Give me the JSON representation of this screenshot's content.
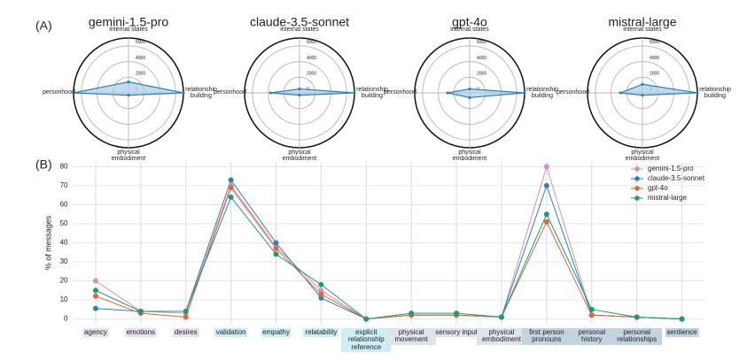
{
  "panel_labels": [
    "(A)",
    "(B)"
  ],
  "chart_data": [
    {
      "type": "radar",
      "title": "gemini-1.5-pro",
      "categories": [
        "internal states",
        "relationship building",
        "physical embodiment",
        "personhood"
      ],
      "values": [
        1400,
        7000,
        300,
        7000
      ],
      "color": "#2e7fb8",
      "fill": "#a9cde5",
      "rlim": [
        0,
        7000
      ],
      "rticks": [
        0,
        2000,
        4000,
        6000
      ]
    },
    {
      "type": "radar",
      "title": "claude-3.5-sonnet",
      "categories": [
        "internal states",
        "relationship building",
        "physical embodiment",
        "personhood"
      ],
      "values": [
        500,
        7000,
        300,
        3700
      ],
      "color": "#2e7fb8",
      "fill": "#a9cde5",
      "rlim": [
        0,
        7000
      ],
      "rticks": [
        0,
        2000,
        4000,
        6000
      ]
    },
    {
      "type": "radar",
      "title": "gpt-4o",
      "categories": [
        "internal states",
        "relationship building",
        "physical embodiment",
        "personhood"
      ],
      "values": [
        500,
        7000,
        600,
        2800
      ],
      "color": "#2e7fb8",
      "fill": "#a9cde5",
      "rlim": [
        0,
        7000
      ],
      "rticks": [
        0,
        2000,
        4000,
        6000
      ]
    },
    {
      "type": "radar",
      "title": "mistral-large",
      "categories": [
        "internal states",
        "relationship building",
        "physical embodiment",
        "personhood"
      ],
      "values": [
        1100,
        7000,
        300,
        2800
      ],
      "color": "#2e7fb8",
      "fill": "#a9cde5",
      "rlim": [
        0,
        7000
      ],
      "rticks": [
        0,
        2000,
        4000,
        6000
      ]
    },
    {
      "type": "line",
      "y_label": "% of messages",
      "categories": [
        "agency",
        "emotions",
        "desires",
        "validation",
        "empathy",
        "relatability",
        "explicit relationship reference",
        "physical movement",
        "sensory input",
        "physical embodiment",
        "first person pronouns",
        "personal history",
        "personal relationships",
        "sentience"
      ],
      "category_colors": [
        "#e9e1f0",
        "#e9e1f0",
        "#e9e1f0",
        "#cdeef6",
        "#cdeef6",
        "#cdeef6",
        "#cdeef6",
        "#dfe4ec",
        "#dfe4ec",
        "#dfe4ec",
        "#c3d4e1",
        "#c3d4e1",
        "#c3d4e1",
        "#c3d4e1"
      ],
      "series": [
        {
          "name": "gemini-1.5-pro",
          "color": "#d98fb5",
          "values": [
            20,
            4,
            3,
            70,
            38,
            15,
            0,
            2,
            2,
            1,
            80,
            2,
            1,
            0
          ]
        },
        {
          "name": "claude-3.5-sonnet",
          "color": "#2e7fb8",
          "values": [
            5.5,
            4,
            4,
            73,
            40,
            11,
            0,
            2,
            2,
            1,
            70,
            2,
            1,
            0
          ]
        },
        {
          "name": "gpt-4o",
          "color": "#d9683a",
          "values": [
            12,
            3,
            1,
            69,
            37,
            13,
            0,
            2,
            2,
            1,
            51,
            2,
            1,
            0
          ]
        },
        {
          "name": "mistral-large",
          "color": "#1a9c7a",
          "values": [
            15,
            4,
            4,
            64,
            34,
            18,
            0,
            3,
            3,
            1,
            55,
            5,
            1,
            0
          ]
        }
      ],
      "ylim": [
        -2.5,
        82.5
      ],
      "yticks": [
        0,
        10,
        20,
        30,
        40,
        50,
        60,
        70,
        80
      ],
      "grid": true,
      "legend": "top-right"
    }
  ]
}
